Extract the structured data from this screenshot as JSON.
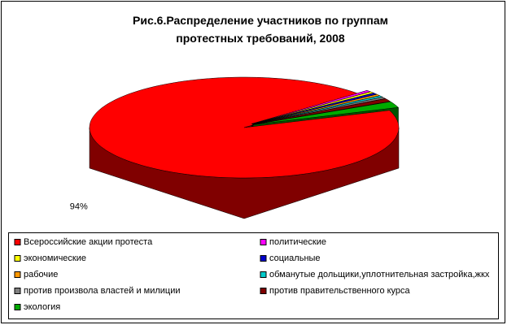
{
  "chart_data": {
    "type": "pie3d",
    "title": "Рис.6.Распределение участников по группам протестных требований, 2008",
    "categories": [
      "Всероссийские акции протеста",
      "политические",
      "экономические",
      "социальные",
      "рабочие",
      "обманутые дольщики,уплотнительная застройка,жкх",
      "против произвола властей и милиции",
      "против правительственного курса",
      "экология"
    ],
    "values": [
      94,
      0.5,
      0.5,
      0.5,
      0.5,
      0.5,
      0.5,
      1,
      2
    ],
    "value_labels": [
      "94%",
      null,
      null,
      null,
      null,
      null,
      null,
      null,
      null
    ],
    "colors": [
      "#ff0000",
      "#ff00ff",
      "#ffff00",
      "#0000cc",
      "#ff9900",
      "#00cccc",
      "#808080",
      "#800000",
      "#00aa00"
    ],
    "legend": "bottom"
  }
}
